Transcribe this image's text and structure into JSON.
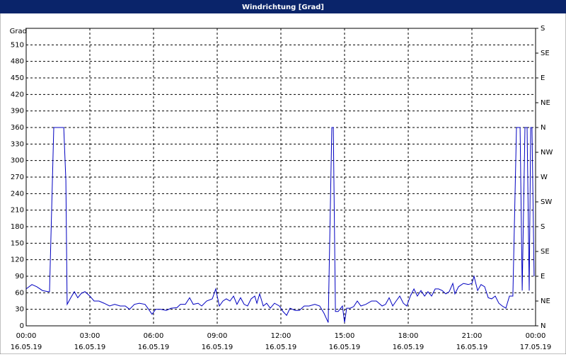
{
  "chart_data": {
    "type": "line",
    "title": "Windrichtung [Grad]",
    "y_label": "Grad",
    "x": [
      0,
      0.27,
      0.5,
      0.77,
      1.03,
      1.1,
      1.3,
      1.77,
      1.87,
      1.93,
      2.1,
      2.27,
      2.43,
      2.6,
      2.77,
      3,
      3.2,
      3.43,
      3.67,
      3.93,
      4.17,
      4.43,
      4.67,
      4.87,
      5.1,
      5.33,
      5.6,
      5.77,
      5.93,
      6.1,
      6.33,
      6.6,
      6.83,
      7.1,
      7.27,
      7.5,
      7.7,
      7.87,
      8.1,
      8.27,
      8.5,
      8.77,
      8.93,
      9.1,
      9.27,
      9.43,
      9.6,
      9.77,
      9.93,
      10.1,
      10.27,
      10.43,
      10.6,
      10.77,
      10.87,
      11,
      11.17,
      11.33,
      11.5,
      11.7,
      11.93,
      12.1,
      12.27,
      12.43,
      12.67,
      12.87,
      13.1,
      13.33,
      13.6,
      13.83,
      14.03,
      14.23,
      14.4,
      14.47,
      14.57,
      14.7,
      14.9,
      15,
      15.1,
      15.27,
      15.43,
      15.6,
      15.77,
      16,
      16.27,
      16.5,
      16.77,
      16.93,
      17.1,
      17.27,
      17.43,
      17.6,
      17.77,
      17.93,
      18.1,
      18.27,
      18.43,
      18.6,
      18.77,
      18.93,
      19.1,
      19.27,
      19.43,
      19.6,
      19.77,
      19.93,
      20.1,
      20.2,
      20.37,
      20.6,
      20.83,
      21,
      21.1,
      21.27,
      21.43,
      21.6,
      21.77,
      21.93,
      22.1,
      22.27,
      22.43,
      22.6,
      22.77,
      22.93,
      23.1,
      23.27,
      23.37,
      23.5,
      23.6,
      23.7,
      23.77,
      23.83,
      23.93
    ],
    "series": [
      {
        "name": "Windrichtung",
        "color": "#0000c0",
        "values": [
          67,
          75,
          71,
          64,
          62,
          62,
          360,
          360,
          264,
          39,
          51,
          62,
          51,
          59,
          62,
          54,
          45,
          45,
          41,
          36,
          39,
          36,
          36,
          30,
          39,
          41,
          39,
          30,
          21,
          30,
          30,
          28,
          32,
          33,
          39,
          39,
          51,
          39,
          41,
          36,
          45,
          49,
          67,
          36,
          45,
          49,
          45,
          54,
          39,
          51,
          39,
          36,
          49,
          54,
          41,
          58,
          36,
          41,
          32,
          41,
          36,
          26,
          19,
          32,
          28,
          28,
          36,
          36,
          39,
          36,
          23,
          6,
          360,
          360,
          26,
          26,
          36,
          6,
          32,
          32,
          35,
          45,
          36,
          39,
          45,
          45,
          36,
          39,
          51,
          36,
          45,
          54,
          41,
          36,
          54,
          67,
          54,
          64,
          54,
          62,
          54,
          67,
          67,
          64,
          58,
          62,
          77,
          58,
          71,
          77,
          75,
          77,
          90,
          64,
          75,
          71,
          51,
          49,
          54,
          41,
          36,
          32,
          54,
          54,
          360,
          360,
          64,
          360,
          360,
          64,
          360,
          360,
          90
        ]
      }
    ],
    "xlim": [
      0,
      24
    ],
    "xticks": [
      {
        "value": 0,
        "label": "00:00"
      },
      {
        "value": 3,
        "label": "03:00"
      },
      {
        "value": 6,
        "label": "06:00"
      },
      {
        "value": 9,
        "label": "09:00"
      },
      {
        "value": 12,
        "label": "12:00"
      },
      {
        "value": 15,
        "label": "15:00"
      },
      {
        "value": 18,
        "label": "18:00"
      },
      {
        "value": 21,
        "label": "21:00"
      },
      {
        "value": 24,
        "label": "00:00"
      }
    ],
    "xtick_dates": [
      "16.05.19",
      "16.05.19",
      "16.05.19",
      "16.05.19",
      "16.05.19",
      "16.05.19",
      "16.05.19",
      "16.05.19",
      "17.05.19"
    ],
    "ylim": [
      0,
      540
    ],
    "yticks": [
      0,
      30,
      60,
      90,
      120,
      150,
      180,
      210,
      240,
      270,
      300,
      330,
      360,
      390,
      420,
      450,
      480,
      510
    ],
    "y2lim": [
      0,
      540
    ],
    "y2ticks": [
      {
        "value": 0,
        "label": "N"
      },
      {
        "value": 45,
        "label": "NE"
      },
      {
        "value": 90,
        "label": "E"
      },
      {
        "value": 135,
        "label": "SE"
      },
      {
        "value": 180,
        "label": "S"
      },
      {
        "value": 225,
        "label": "SW"
      },
      {
        "value": 270,
        "label": "W"
      },
      {
        "value": 315,
        "label": "NW"
      },
      {
        "value": 360,
        "label": "N"
      },
      {
        "value": 405,
        "label": "NE"
      },
      {
        "value": 450,
        "label": "E"
      },
      {
        "value": 495,
        "label": "SE"
      },
      {
        "value": 540,
        "label": "S"
      }
    ],
    "grid": true
  }
}
